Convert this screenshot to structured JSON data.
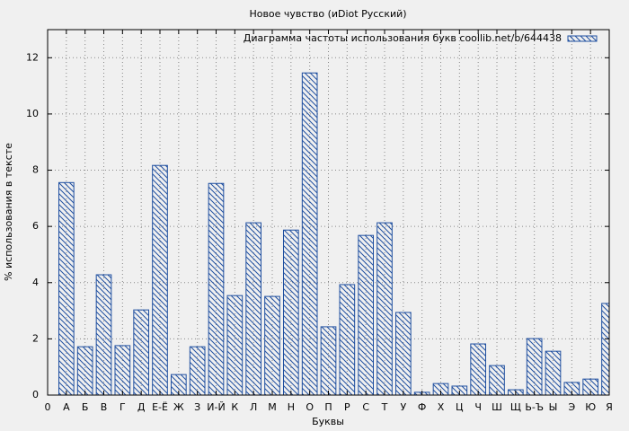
{
  "chart_data": {
    "type": "bar",
    "title": "Новое чувство (иDiot Русский)",
    "xlabel": "Буквы",
    "ylabel": "% использования в тексте",
    "x": [
      1,
      2,
      3,
      4,
      5,
      6,
      7,
      8,
      9,
      10,
      11,
      12,
      13,
      14,
      15,
      16,
      17,
      18,
      19,
      20,
      21,
      22,
      23,
      24,
      25,
      26,
      27,
      28,
      29,
      30
    ],
    "series": [
      {
        "name": "Диаграмма частоты использования букв coollib.net/b/644438",
        "color": "#1f4fa0",
        "values": [
          7.56,
          1.72,
          4.28,
          1.76,
          3.03,
          8.17,
          0.73,
          1.72,
          7.53,
          3.54,
          6.13,
          3.51,
          5.87,
          11.46,
          2.43,
          3.93,
          5.68,
          6.13,
          2.94,
          0.1,
          0.41,
          0.32,
          1.82,
          1.05,
          0.19,
          2.01,
          1.56,
          0.45,
          0.57,
          3.26
        ]
      }
    ],
    "xlim": [
      0,
      30
    ],
    "xticks": [
      0,
      {
        "value": 1,
        "label": "А"
      },
      {
        "value": 2,
        "label": "Б"
      },
      {
        "value": 3,
        "label": "В"
      },
      {
        "value": 4,
        "label": "Г"
      },
      {
        "value": 5,
        "label": "Д"
      },
      {
        "value": 6,
        "label": "Е-Ё"
      },
      {
        "value": 7,
        "label": "Ж"
      },
      {
        "value": 8,
        "label": "З"
      },
      {
        "value": 9,
        "label": "И-Й"
      },
      {
        "value": 10,
        "label": "К"
      },
      {
        "value": 11,
        "label": "Л"
      },
      {
        "value": 12,
        "label": "М"
      },
      {
        "value": 13,
        "label": "Н"
      },
      {
        "value": 14,
        "label": "О"
      },
      {
        "value": 15,
        "label": "П"
      },
      {
        "value": 16,
        "label": "Р"
      },
      {
        "value": 17,
        "label": "С"
      },
      {
        "value": 18,
        "label": "Т"
      },
      {
        "value": 19,
        "label": "У"
      },
      {
        "value": 20,
        "label": "Ф"
      },
      {
        "value": 21,
        "label": "Х"
      },
      {
        "value": 22,
        "label": "Ц"
      },
      {
        "value": 23,
        "label": "Ч"
      },
      {
        "value": 24,
        "label": "Ш"
      },
      {
        "value": 25,
        "label": "Щ"
      },
      {
        "value": 26,
        "label": "Ь-Ъ"
      },
      {
        "value": 27,
        "label": "Ы"
      },
      {
        "value": 28,
        "label": "Э"
      },
      {
        "value": 29,
        "label": "Ю"
      },
      {
        "value": 30,
        "label": "Я"
      }
    ],
    "ylim": [
      0,
      13
    ],
    "yticks": [
      0,
      2,
      4,
      6,
      8,
      10,
      12
    ],
    "grid": true,
    "legend": "top-right"
  }
}
